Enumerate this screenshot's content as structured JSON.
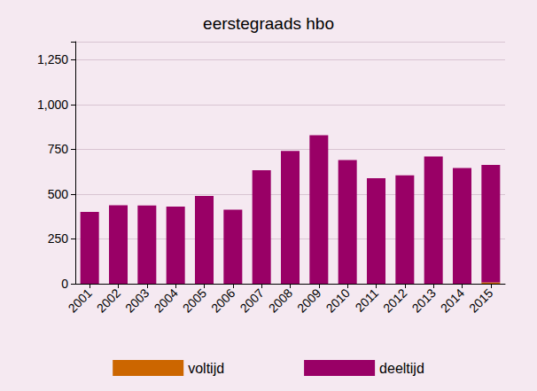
{
  "chart_data": {
    "type": "bar",
    "title": "eerstegraads hbo",
    "categories": [
      "2001",
      "2002",
      "2003",
      "2004",
      "2005",
      "2006",
      "2007",
      "2008",
      "2009",
      "2010",
      "2011",
      "2012",
      "2013",
      "2014",
      "2015"
    ],
    "series": [
      {
        "name": "voltijd",
        "color": "#cc6600",
        "values": [
          0,
          0,
          0,
          0,
          0,
          0,
          0,
          0,
          0,
          0,
          0,
          0,
          0,
          0,
          8
        ]
      },
      {
        "name": "deeltijd",
        "color": "#990066",
        "values": [
          400,
          438,
          437,
          430,
          490,
          413,
          633,
          740,
          828,
          690,
          588,
          605,
          710,
          645,
          655
        ]
      }
    ],
    "stacked": true,
    "ylim": [
      0,
      1350
    ],
    "yticks": [
      0,
      250,
      500,
      750,
      {
        "value": 1000,
        "label": "1,000"
      },
      {
        "value": 1250,
        "label": "1,250"
      }
    ],
    "grid": true,
    "legend": "bottom"
  }
}
